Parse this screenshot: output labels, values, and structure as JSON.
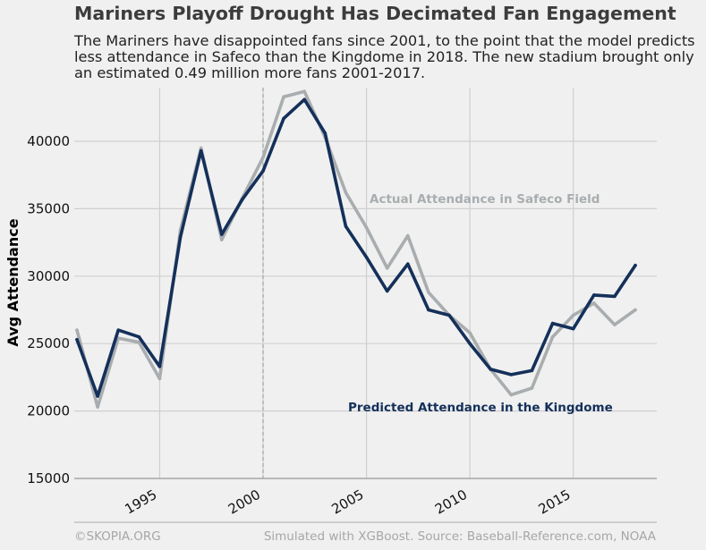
{
  "title": "Mariners Playoff Drought Has Decimated Fan Engagement",
  "subtitle": "The Mariners have disappointed fans since 2001, to the point that the model predicts less attendance in Safeco than the Kingdome in 2018. The new stadium brought only an estimated 0.49 million more fans 2001-2017.",
  "footer": {
    "left": "©SKOPIA.ORG",
    "right": "Simulated with XGBoost. Source: Baseball-Reference.com, NOAA"
  },
  "colors": {
    "actual": "#a9adaf",
    "predicted": "#14305a",
    "grid": "#cfcfcf",
    "background": "#f0f0f0"
  },
  "chart_data": {
    "type": "line",
    "title": "Mariners Playoff Drought Has Decimated Fan Engagement",
    "ylabel": "Avg Attendance",
    "xlabel": "",
    "xlim": [
      1991,
      2019
    ],
    "ylim": [
      15000,
      44000
    ],
    "yticks": [
      15000,
      20000,
      25000,
      30000,
      35000,
      40000
    ],
    "xticks": [
      1995,
      2000,
      2005,
      2010,
      2015
    ],
    "vline": 2000,
    "x": [
      1991,
      1992,
      1993,
      1994,
      1995,
      1996,
      1997,
      1998,
      1999,
      2000,
      2001,
      2002,
      2003,
      2004,
      2005,
      2006,
      2007,
      2008,
      2009,
      2010,
      2011,
      2012,
      2013,
      2014,
      2015,
      2016,
      2017,
      2018
    ],
    "series": [
      {
        "name": "Actual Attendance in Safeco Field",
        "values": [
          26000,
          20300,
          25400,
          25100,
          22400,
          33400,
          39500,
          32700,
          35800,
          38800,
          43300,
          43700,
          40300,
          36200,
          33600,
          30600,
          33000,
          28800,
          27100,
          25800,
          23100,
          21200,
          21700,
          25500,
          27100,
          28000,
          26400,
          27500
        ]
      },
      {
        "name": "Predicted Attendance in the Kingdome",
        "values": [
          25300,
          21100,
          26000,
          25500,
          23300,
          32900,
          39300,
          33100,
          35700,
          37800,
          41700,
          43100,
          40600,
          33700,
          31400,
          28900,
          30900,
          27500,
          27100,
          25000,
          23100,
          22700,
          23000,
          26500,
          26100,
          28600,
          28500,
          30800
        ]
      }
    ]
  }
}
